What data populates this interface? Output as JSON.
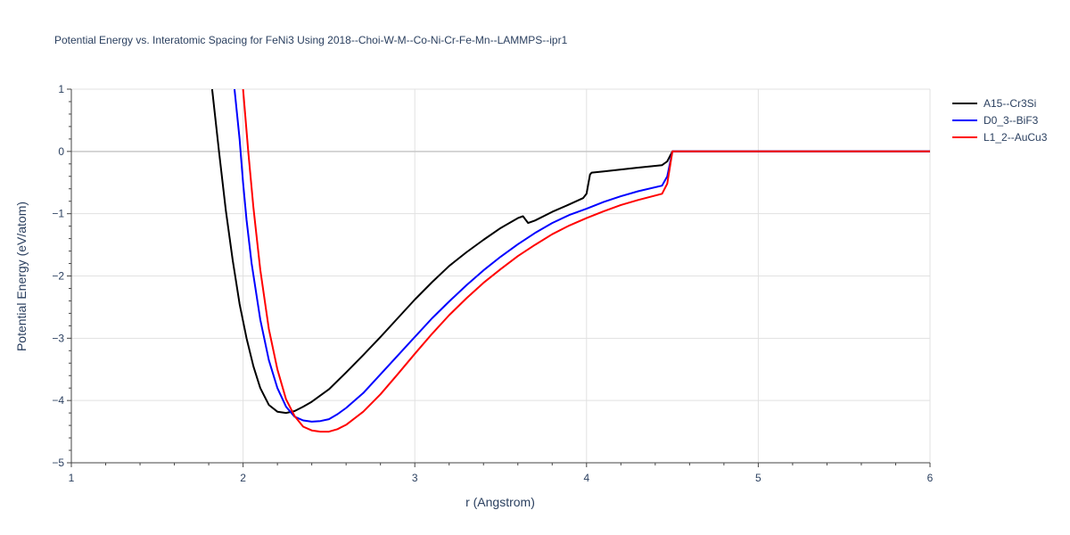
{
  "chart_data": {
    "type": "line",
    "title": "Potential Energy vs. Interatomic Spacing for FeNi3 Using 2018--Choi-W-M--Co-Ni-Cr-Fe-Mn--LAMMPS--ipr1",
    "xlabel": "r (Angstrom)",
    "ylabel": "Potential Energy (eV/atom)",
    "xlim": [
      1,
      6
    ],
    "ylim": [
      -5,
      1
    ],
    "xticks": [
      1,
      2,
      3,
      4,
      5,
      6
    ],
    "yticks": [
      1,
      0,
      -1,
      -2,
      -3,
      -4,
      -5
    ],
    "grid": true,
    "legend_position": "top-right",
    "series": [
      {
        "name": "A15--Cr3Si",
        "color": "#000000",
        "x": [
          1.82,
          1.86,
          1.9,
          1.94,
          1.98,
          2.02,
          2.06,
          2.1,
          2.15,
          2.2,
          2.25,
          2.3,
          2.35,
          2.4,
          2.5,
          2.6,
          2.7,
          2.8,
          2.9,
          3.0,
          3.1,
          3.2,
          3.3,
          3.4,
          3.5,
          3.6,
          3.63,
          3.66,
          3.7,
          3.8,
          3.9,
          3.98,
          4.0,
          4.02,
          4.03,
          4.1,
          4.2,
          4.3,
          4.44,
          4.47,
          4.5,
          4.6,
          5.0,
          5.5,
          6.0
        ],
        "y": [
          1.0,
          0.0,
          -0.95,
          -1.75,
          -2.45,
          -3.0,
          -3.45,
          -3.8,
          -4.07,
          -4.18,
          -4.2,
          -4.17,
          -4.1,
          -4.02,
          -3.82,
          -3.55,
          -3.27,
          -2.98,
          -2.68,
          -2.38,
          -2.1,
          -1.84,
          -1.62,
          -1.42,
          -1.23,
          -1.07,
          -1.04,
          -1.15,
          -1.11,
          -0.97,
          -0.85,
          -0.75,
          -0.68,
          -0.37,
          -0.34,
          -0.32,
          -0.29,
          -0.26,
          -0.22,
          -0.16,
          0.0,
          0.0,
          0.0,
          0.0,
          0.0
        ]
      },
      {
        "name": "D0_3--BiF3",
        "color": "#0000ff",
        "x": [
          1.95,
          1.98,
          2.0,
          2.02,
          2.05,
          2.1,
          2.15,
          2.2,
          2.25,
          2.3,
          2.35,
          2.4,
          2.45,
          2.5,
          2.55,
          2.6,
          2.7,
          2.8,
          2.9,
          3.0,
          3.1,
          3.2,
          3.3,
          3.4,
          3.5,
          3.6,
          3.7,
          3.8,
          3.9,
          4.0,
          4.1,
          4.2,
          4.3,
          4.44,
          4.47,
          4.5,
          4.6,
          5.0,
          5.5,
          6.0
        ],
        "y": [
          1.0,
          0.2,
          -0.5,
          -1.1,
          -1.8,
          -2.7,
          -3.35,
          -3.8,
          -4.1,
          -4.26,
          -4.32,
          -4.34,
          -4.33,
          -4.3,
          -4.22,
          -4.12,
          -3.88,
          -3.58,
          -3.28,
          -2.98,
          -2.68,
          -2.41,
          -2.15,
          -1.91,
          -1.69,
          -1.49,
          -1.31,
          -1.15,
          -1.02,
          -0.92,
          -0.81,
          -0.72,
          -0.64,
          -0.55,
          -0.4,
          0.0,
          0.0,
          0.0,
          0.0,
          0.0
        ]
      },
      {
        "name": "L1_2--AuCu3",
        "color": "#ff0000",
        "x": [
          2.0,
          2.03,
          2.06,
          2.1,
          2.15,
          2.2,
          2.25,
          2.3,
          2.35,
          2.4,
          2.45,
          2.5,
          2.55,
          2.6,
          2.7,
          2.8,
          2.9,
          3.0,
          3.1,
          3.2,
          3.3,
          3.4,
          3.5,
          3.6,
          3.7,
          3.8,
          3.9,
          4.0,
          4.1,
          4.2,
          4.3,
          4.44,
          4.47,
          4.5,
          4.6,
          5.0,
          5.5,
          6.0
        ],
        "y": [
          1.0,
          0.0,
          -0.9,
          -1.9,
          -2.85,
          -3.5,
          -3.98,
          -4.25,
          -4.42,
          -4.48,
          -4.5,
          -4.5,
          -4.46,
          -4.39,
          -4.18,
          -3.9,
          -3.58,
          -3.25,
          -2.93,
          -2.63,
          -2.36,
          -2.11,
          -1.89,
          -1.68,
          -1.5,
          -1.33,
          -1.19,
          -1.07,
          -0.96,
          -0.86,
          -0.78,
          -0.68,
          -0.52,
          0.0,
          0.0,
          0.0,
          0.0,
          0.0
        ]
      }
    ]
  }
}
